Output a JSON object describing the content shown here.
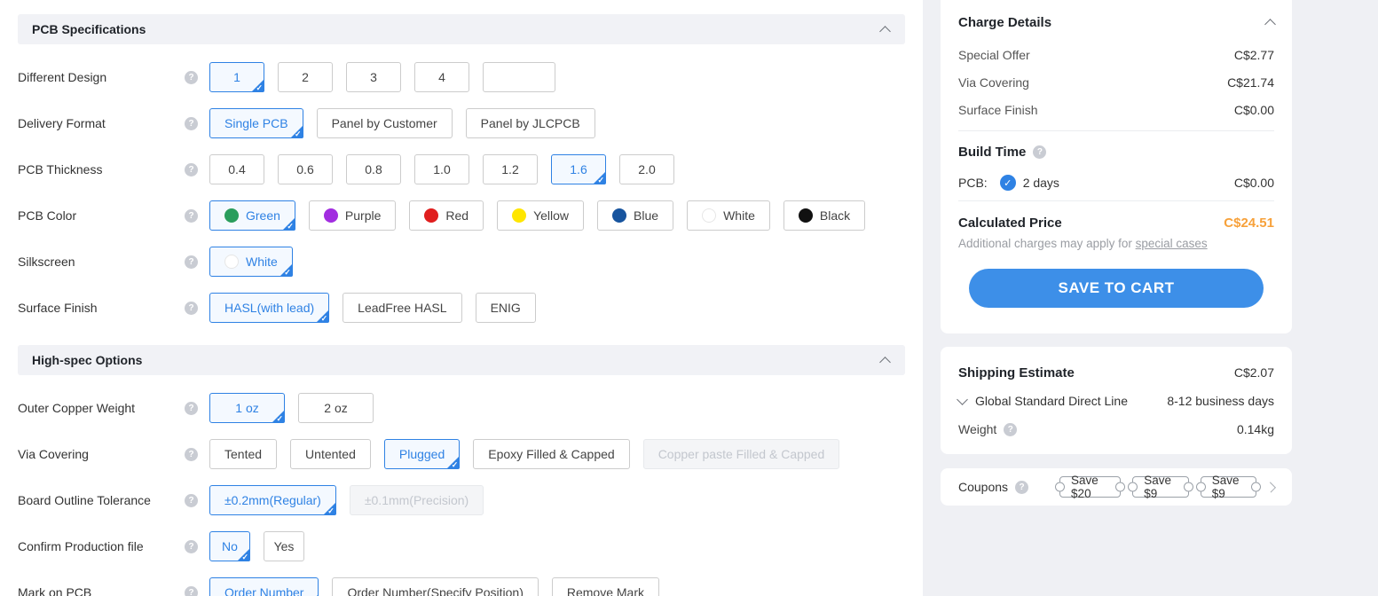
{
  "colors": {
    "accent": "#2f82e4",
    "accent_light_bg": "#f4f9ff",
    "save_button_blue": "#3d8fe8",
    "price_orange": "#f7a13a"
  },
  "left": {
    "sections": [
      {
        "title": "PCB Specifications",
        "rows": [
          {
            "label": "Different Design",
            "options": [
              {
                "text": "1",
                "state": "selected",
                "cls": "num"
              },
              {
                "text": "2",
                "cls": "num"
              },
              {
                "text": "3",
                "cls": "num"
              },
              {
                "text": "4",
                "cls": "num"
              },
              {
                "text": "",
                "cls": "custom"
              }
            ]
          },
          {
            "label": "Delivery Format",
            "options": [
              {
                "text": "Single PCB",
                "state": "selected",
                "cls": "wide"
              },
              {
                "text": "Panel by Customer"
              },
              {
                "text": "Panel by JLCPCB"
              }
            ]
          },
          {
            "label": "PCB Thickness",
            "options": [
              {
                "text": "0.4",
                "cls": "num"
              },
              {
                "text": "0.6",
                "cls": "num"
              },
              {
                "text": "0.8",
                "cls": "num"
              },
              {
                "text": "1.0",
                "cls": "num"
              },
              {
                "text": "1.2",
                "cls": "num"
              },
              {
                "text": "1.6",
                "state": "selected",
                "cls": "num"
              },
              {
                "text": "2.0",
                "cls": "num"
              }
            ]
          },
          {
            "label": "PCB Color",
            "options": [
              {
                "text": "Green",
                "state": "selected",
                "dot": "#2a9d5c"
              },
              {
                "text": "Purple",
                "dot": "#a22de0"
              },
              {
                "text": "Red",
                "dot": "#e01e1e"
              },
              {
                "text": "Yellow",
                "dot": "#ffe600"
              },
              {
                "text": "Blue",
                "dot": "#17549e"
              },
              {
                "text": "White",
                "dot": "#ffffff"
              },
              {
                "text": "Black",
                "dot": "#111111"
              }
            ]
          },
          {
            "label": "Silkscreen",
            "options": [
              {
                "text": "White",
                "state": "selected",
                "dot": "#ffffff"
              }
            ]
          },
          {
            "label": "Surface Finish",
            "options": [
              {
                "text": "HASL(with lead)",
                "state": "selected"
              },
              {
                "text": "LeadFree HASL"
              },
              {
                "text": "ENIG"
              }
            ]
          }
        ]
      },
      {
        "title": "High-spec Options",
        "rows": [
          {
            "label": "Outer Copper Weight",
            "options": [
              {
                "text": "1 oz",
                "state": "selected",
                "cls": "wide-sm"
              },
              {
                "text": "2 oz",
                "cls": "wide-sm"
              }
            ]
          },
          {
            "label": "Via Covering",
            "options": [
              {
                "text": "Tented"
              },
              {
                "text": "Untented"
              },
              {
                "text": "Plugged",
                "state": "selected"
              },
              {
                "text": "Epoxy Filled & Capped"
              },
              {
                "text": "Copper paste Filled & Capped",
                "state": "disabled"
              }
            ]
          },
          {
            "label": "Board Outline Tolerance",
            "options": [
              {
                "text": "±0.2mm(Regular)",
                "state": "selected"
              },
              {
                "text": "±0.1mm(Precision)",
                "state": "disabled"
              }
            ]
          },
          {
            "label": "Confirm Production file",
            "options": [
              {
                "text": "No",
                "state": "selected",
                "cls": "sm"
              },
              {
                "text": "Yes",
                "cls": "sm"
              }
            ]
          },
          {
            "label": "Mark on PCB",
            "options": [
              {
                "text": "Order Number",
                "state": "selected"
              },
              {
                "text": "Order Number(Specify Position)"
              },
              {
                "text": "Remove Mark"
              }
            ]
          }
        ]
      }
    ]
  },
  "charge": {
    "title": "Charge Details",
    "fees": [
      {
        "label": "Special Offer",
        "value": "C$2.77"
      },
      {
        "label": "Via Covering",
        "value": "C$21.74"
      },
      {
        "label": "Surface Finish",
        "value": "C$0.00"
      }
    ],
    "build_time": {
      "title": "Build Time",
      "pcb_label": "PCB:",
      "selected_option": "2 days",
      "value": "C$0.00"
    },
    "calculated": {
      "label": "Calculated Price",
      "value": "C$24.51",
      "note_prefix": "Additional charges may apply for ",
      "note_link": "special cases"
    },
    "save_button": "SAVE TO CART"
  },
  "shipping": {
    "title": "Shipping Estimate",
    "value": "C$2.07",
    "method": "Global Standard Direct Line",
    "duration": "8-12 business days",
    "weight_label": "Weight",
    "weight_value": "0.14kg"
  },
  "coupons": {
    "label": "Coupons",
    "items": [
      "Save $20",
      "Save $9",
      "Save $9"
    ]
  }
}
